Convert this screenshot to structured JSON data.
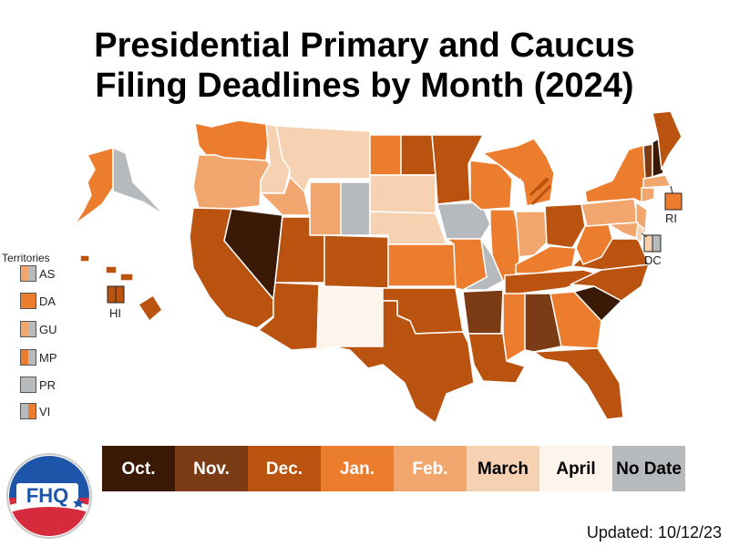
{
  "title_line1": "Presidential Primary and Caucus",
  "title_line2": "Filing Deadlines by Month (2024)",
  "colors": {
    "oct": "#3a1a07",
    "nov": "#7a3b15",
    "dec": "#b9530f",
    "jan": "#ec7d2e",
    "feb": "#f0a66d",
    "mar": "#f7d2b2",
    "apr": "#fdf5ec",
    "nodate": "#b6babc",
    "border": "#ffffff",
    "outline": "#222222"
  },
  "legend": [
    {
      "label": "Oct.",
      "key": "oct",
      "text_color": "#ffffff"
    },
    {
      "label": "Nov.",
      "key": "nov",
      "text_color": "#ffffff"
    },
    {
      "label": "Dec.",
      "key": "dec",
      "text_color": "#ffffff"
    },
    {
      "label": "Jan.",
      "key": "jan",
      "text_color": "#ffffff"
    },
    {
      "label": "Feb.",
      "key": "feb",
      "text_color": "#ffffff"
    },
    {
      "label": "March",
      "key": "mar",
      "text_color": "#000000"
    },
    {
      "label": "April",
      "key": "apr",
      "text_color": "#000000"
    },
    {
      "label": "No Date",
      "key": "nodate",
      "text_color": "#000000"
    }
  ],
  "territories_heading": "Territories",
  "territories": [
    {
      "label": "AS",
      "left": "feb",
      "right": "nodate"
    },
    {
      "label": "DA",
      "left": "jan",
      "right": "jan"
    },
    {
      "label": "GU",
      "left": "feb",
      "right": "nodate"
    },
    {
      "label": "MP",
      "left": "jan",
      "right": "nodate"
    },
    {
      "label": "PR",
      "left": "nodate",
      "right": "nodate"
    },
    {
      "label": "VI",
      "left": "nodate",
      "right": "jan"
    }
  ],
  "map_labels": {
    "hi": "HI",
    "ri": "RI",
    "dc": "DC"
  },
  "states": [
    {
      "id": "WA",
      "c": "jan"
    },
    {
      "id": "OR",
      "c": "feb"
    },
    {
      "id": "CA",
      "c": "dec"
    },
    {
      "id": "NV",
      "c": "oct"
    },
    {
      "id": "ID-N",
      "c": "mar"
    },
    {
      "id": "ID-S",
      "c": "feb"
    },
    {
      "id": "MT",
      "c": "mar"
    },
    {
      "id": "WY-W",
      "c": "feb"
    },
    {
      "id": "WY-E",
      "c": "nodate"
    },
    {
      "id": "UT",
      "c": "dec"
    },
    {
      "id": "AZ",
      "c": "dec"
    },
    {
      "id": "CO",
      "c": "dec"
    },
    {
      "id": "NM",
      "c": "apr"
    },
    {
      "id": "ND-W",
      "c": "jan"
    },
    {
      "id": "ND-E",
      "c": "dec"
    },
    {
      "id": "SD",
      "c": "mar"
    },
    {
      "id": "NE",
      "c": "mar"
    },
    {
      "id": "KS",
      "c": "jan"
    },
    {
      "id": "OK",
      "c": "dec"
    },
    {
      "id": "TX",
      "c": "dec"
    },
    {
      "id": "MN",
      "c": "dec"
    },
    {
      "id": "IA",
      "c": "nodate"
    },
    {
      "id": "MO",
      "c": "jan"
    },
    {
      "id": "MO-E",
      "c": "nodate"
    },
    {
      "id": "AR",
      "c": "nov"
    },
    {
      "id": "LA",
      "c": "dec"
    },
    {
      "id": "WI",
      "c": "jan"
    },
    {
      "id": "IL",
      "c": "jan"
    },
    {
      "id": "MI",
      "c": "jan"
    },
    {
      "id": "IN",
      "c": "feb"
    },
    {
      "id": "OH",
      "c": "dec"
    },
    {
      "id": "KY",
      "c": "jan"
    },
    {
      "id": "TN",
      "c": "dec"
    },
    {
      "id": "MS",
      "c": "jan"
    },
    {
      "id": "AL",
      "c": "nov"
    },
    {
      "id": "GA",
      "c": "jan"
    },
    {
      "id": "FL",
      "c": "dec"
    },
    {
      "id": "SC",
      "c": "oct"
    },
    {
      "id": "NC",
      "c": "dec"
    },
    {
      "id": "VA",
      "c": "dec"
    },
    {
      "id": "WV",
      "c": "jan"
    },
    {
      "id": "PA",
      "c": "feb"
    },
    {
      "id": "NY",
      "c": "jan"
    },
    {
      "id": "NJ",
      "c": "feb"
    },
    {
      "id": "MD",
      "c": "feb"
    },
    {
      "id": "DE",
      "c": "mar"
    },
    {
      "id": "VT",
      "c": "nov"
    },
    {
      "id": "NH",
      "c": "oct"
    },
    {
      "id": "ME",
      "c": "dec"
    },
    {
      "id": "MA",
      "c": "feb"
    },
    {
      "id": "CT",
      "c": "feb"
    },
    {
      "id": "AK",
      "c": "jan"
    },
    {
      "id": "AK-E",
      "c": "nodate"
    },
    {
      "id": "HI",
      "c": "dec"
    },
    {
      "id": "RI",
      "c": "jan"
    },
    {
      "id": "DC-L",
      "c": "mar"
    },
    {
      "id": "DC-R",
      "c": "nodate"
    },
    {
      "id": "HI-BOX-L",
      "c": "dec"
    },
    {
      "id": "HI-BOX-R",
      "c": "dec"
    }
  ],
  "updated": "Updated: 10/12/23"
}
